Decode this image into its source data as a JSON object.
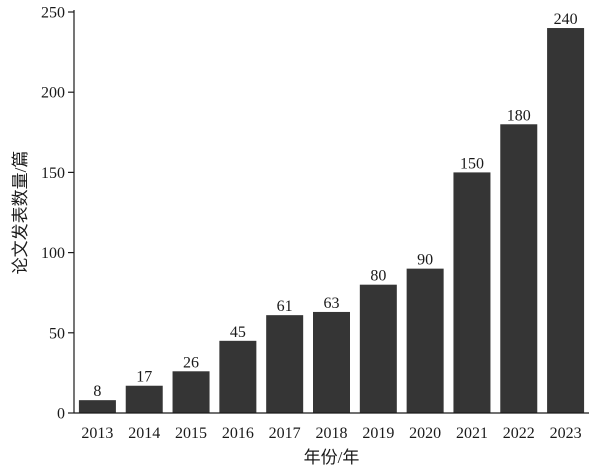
{
  "chart_data": {
    "type": "bar",
    "categories": [
      "2013",
      "2014",
      "2015",
      "2016",
      "2017",
      "2018",
      "2019",
      "2020",
      "2021",
      "2022",
      "2023"
    ],
    "values": [
      8,
      17,
      26,
      45,
      61,
      63,
      80,
      90,
      150,
      180,
      240
    ],
    "data_labels": [
      "8",
      "17",
      "26",
      "45",
      "61",
      "63",
      "80",
      "90",
      "150",
      "180",
      "240"
    ],
    "xlabel": "年份/年",
    "ylabel": "论文发表数量/篇",
    "ylim": [
      0,
      250
    ],
    "yticks": [
      0,
      50,
      100,
      150,
      200,
      250
    ],
    "ytick_labels": [
      "0",
      "50",
      "100",
      "150",
      "200",
      "250"
    ],
    "grid": false,
    "bar_color": "#353535"
  }
}
